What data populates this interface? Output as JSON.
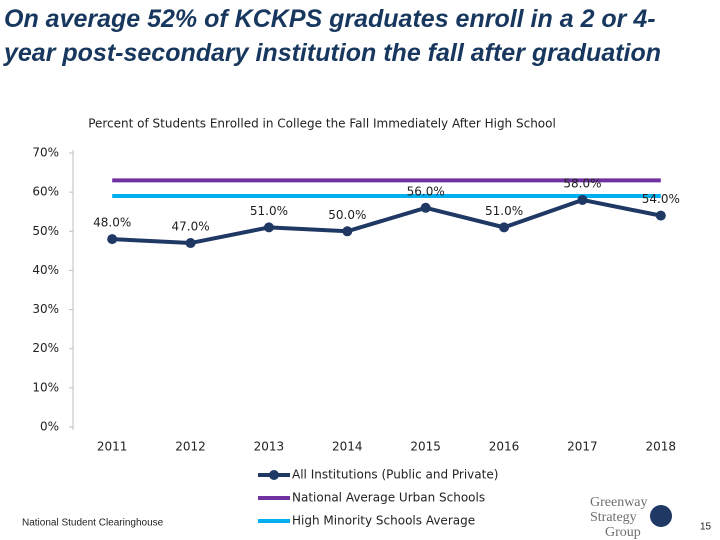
{
  "slide_title": "On average 52% of KCKPS graduates enroll in a 2 or 4-year post-secondary institution the fall after graduation",
  "chart_data": {
    "type": "line",
    "title": "Percent of Students Enrolled in College the Fall Immediately After High School",
    "categories": [
      "2011",
      "2012",
      "2013",
      "2014",
      "2015",
      "2016",
      "2017",
      "2018"
    ],
    "series": [
      {
        "name": "All Institutions (Public and Private)",
        "color": "#1f3864",
        "markers": true,
        "values": [
          48,
          47,
          51,
          50,
          56,
          51,
          58,
          54
        ],
        "value_labels": [
          "48.0%",
          "47.0%",
          "51.0%",
          "50.0%",
          "56.0%",
          "51.0%",
          "58.0%",
          "54.0%"
        ]
      },
      {
        "name": "National Average Urban Schools",
        "color": "#7030a0",
        "markers": false,
        "values": [
          63,
          63,
          63,
          63,
          63,
          63,
          63,
          63
        ]
      },
      {
        "name": "High Minority Schools Average",
        "color": "#00b0f0",
        "markers": false,
        "values": [
          59,
          59,
          59,
          59,
          59,
          59,
          59,
          59
        ]
      }
    ],
    "ylim": [
      0,
      70
    ],
    "yticks": [
      {
        "value": 0,
        "label": "0%"
      },
      {
        "value": 10,
        "label": "10%"
      },
      {
        "value": 20,
        "label": "20%"
      },
      {
        "value": 30,
        "label": "30%"
      },
      {
        "value": 40,
        "label": "40%"
      },
      {
        "value": 50,
        "label": "50%"
      },
      {
        "value": 60,
        "label": "60%"
      },
      {
        "value": 70,
        "label": "70%"
      }
    ],
    "grid": false,
    "legend": "bottom"
  },
  "source": "National Student Clearinghouse",
  "logo": [
    "Greenway",
    "Strategy",
    "Group"
  ],
  "page_number": "15"
}
